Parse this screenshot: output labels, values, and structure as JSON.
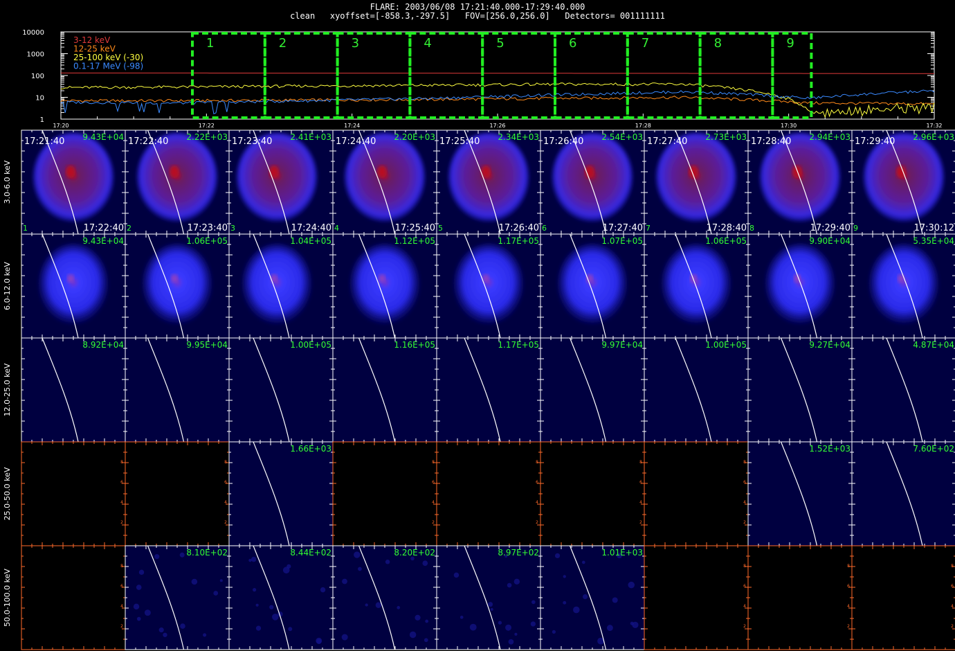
{
  "header": {
    "title": "FLARE: 2003/06/08 17:21:40.000-17:29:40.000",
    "info": "clean   xyoffset=[-858.3,-297.5]   FOV=[256.0,256.0]   Detectors= 001111111"
  },
  "colors": {
    "bg": "#000000",
    "image_bg": "#000040",
    "blob_core": "#a00020",
    "green": "#00ff00",
    "white": "#ffffff",
    "orange": "#ff6a2a"
  },
  "chart_data": [
    {
      "type": "line",
      "title": "",
      "yscale": "log",
      "ylim": [
        1,
        10000
      ],
      "y_ticks": [
        "10000",
        "1000",
        "100",
        "10",
        "1"
      ],
      "x_ticks": [
        "17:20",
        "17:22",
        "17:24",
        "17:26",
        "17:28",
        "17:30",
        "17:32"
      ],
      "x_range": [
        "17:20",
        "17:32"
      ],
      "legend_position": "top-left",
      "series": [
        {
          "name": "3-12 keV",
          "color": "#e03a3a",
          "shape": "flat",
          "values": [
            130,
            130,
            128,
            128,
            126,
            125,
            124,
            122
          ]
        },
        {
          "name": "12-25 keV",
          "color": "#ff8a1a",
          "shape": "flat-drop",
          "values": [
            7,
            7,
            7.5,
            8,
            9,
            10,
            5.5,
            5
          ]
        },
        {
          "name": "25-100 keV (-30)",
          "color": "#ffff40",
          "shape": "flat-drop",
          "values": [
            28,
            30,
            33,
            36,
            40,
            40,
            2,
            4
          ]
        },
        {
          "name": "0.1-17 MeV (-98)",
          "color": "#3a8aff",
          "shape": "rising-drop",
          "values": [
            6,
            5.5,
            7,
            9,
            13,
            18,
            9,
            20
          ]
        }
      ],
      "time_intervals": [
        "1",
        "2",
        "3",
        "4",
        "5",
        "6",
        "7",
        "8",
        "9"
      ]
    },
    {
      "type": "heatmap",
      "row_labels": [
        "3.0-6.0 keV",
        "6.0-12.0 keV",
        "12.0-25.0 keV",
        "25.0-50.0 keV",
        "50.0-100.0 keV"
      ],
      "column_labels": [
        "1",
        "2",
        "3",
        "4",
        "5",
        "6",
        "7",
        "8",
        "9"
      ],
      "start_times": [
        "17:21:40",
        "17:22:40",
        "17:23:40",
        "17:24:40",
        "17:25:40",
        "17:26:40",
        "17:27:40",
        "17:28:40",
        "17:29:40"
      ],
      "end_times": [
        "17:22:40",
        "17:23:40",
        "17:24:40",
        "17:25:40",
        "17:26:40",
        "17:27:40",
        "17:28:40",
        "17:29:40",
        "17:30:12"
      ],
      "max_values": [
        [
          "9.43E+04",
          "2.22E+03",
          "2.41E+03",
          "2.20E+03",
          "2.34E+03",
          "2.54E+03",
          "2.73E+03",
          "2.94E+03",
          "2.96E+03"
        ],
        [
          "9.43E+04",
          "1.06E+05",
          "1.04E+05",
          "1.12E+05",
          "1.17E+05",
          "1.07E+05",
          "1.06E+05",
          "9.90E+04",
          "5.35E+04"
        ],
        [
          "8.92E+04",
          "9.95E+04",
          "1.00E+05",
          "1.16E+05",
          "1.17E+05",
          "9.97E+04",
          "1.00E+05",
          "9.27E+04",
          "4.87E+04"
        ],
        [
          "",
          "",
          "1.66E+03",
          "",
          "",
          "",
          "",
          "1.52E+03",
          "7.60E+02"
        ],
        [
          "",
          "8.10E+02",
          "8.44E+02",
          "8.20E+02",
          "8.97E+02",
          "1.01E+03",
          "",
          "",
          ""
        ]
      ],
      "cell_kinds": [
        [
          "red",
          "red",
          "red",
          "red",
          "red",
          "red",
          "red",
          "red",
          "red"
        ],
        [
          "blue",
          "blue",
          "blue",
          "blue",
          "blue",
          "blue",
          "blue",
          "blue",
          "blue"
        ],
        [
          "limb",
          "limb",
          "limb",
          "limb",
          "limb",
          "limb",
          "limb",
          "limb",
          "limb"
        ],
        [
          "empty",
          "empty",
          "limb",
          "empty",
          "empty",
          "empty",
          "empty",
          "limb",
          "limb"
        ],
        [
          "empty",
          "noise",
          "noise",
          "noise",
          "noise",
          "noise",
          "empty",
          "empty",
          "empty"
        ]
      ],
      "axis_tick_labels": [
        "2",
        "4",
        "6",
        "8"
      ]
    }
  ]
}
